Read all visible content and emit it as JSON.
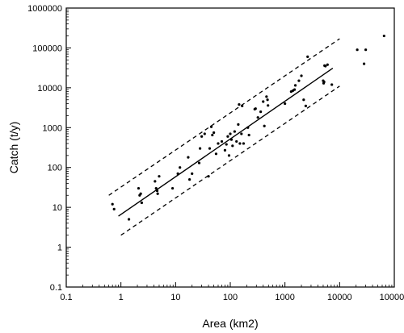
{
  "chart_data": {
    "type": "scatter",
    "title": "",
    "xlabel": "Area  (km2)",
    "ylabel": "Catch  (t/y)",
    "x_scale": "log",
    "y_scale": "log",
    "xlim": [
      0.1,
      100000
    ],
    "ylim": [
      0.1,
      1000000
    ],
    "x_ticks": [
      "0.1",
      "1",
      "10",
      "100",
      "1000",
      "10000",
      "100000"
    ],
    "y_ticks": [
      "0.1",
      "1",
      "10",
      "100",
      "1000",
      "10000",
      "100000",
      "1000000"
    ],
    "grid": false,
    "legend": "none",
    "points": [
      [
        0.7,
        12
      ],
      [
        0.75,
        9
      ],
      [
        1.4,
        5
      ],
      [
        2.1,
        30
      ],
      [
        2.2,
        20
      ],
      [
        2.3,
        22
      ],
      [
        2.4,
        13
      ],
      [
        4.2,
        45
      ],
      [
        4.4,
        30
      ],
      [
        4.6,
        26
      ],
      [
        4.7,
        22
      ],
      [
        5.0,
        60
      ],
      [
        8.8,
        30
      ],
      [
        11,
        70
      ],
      [
        12,
        100
      ],
      [
        17,
        180
      ],
      [
        18,
        50
      ],
      [
        20,
        70
      ],
      [
        27,
        130
      ],
      [
        28,
        300
      ],
      [
        30,
        600
      ],
      [
        34,
        700
      ],
      [
        40,
        60
      ],
      [
        42,
        300
      ],
      [
        45,
        1050
      ],
      [
        47,
        650
      ],
      [
        50,
        750
      ],
      [
        55,
        220
      ],
      [
        60,
        400
      ],
      [
        70,
        450
      ],
      [
        80,
        270
      ],
      [
        85,
        380
      ],
      [
        90,
        600
      ],
      [
        95,
        200
      ],
      [
        100,
        700
      ],
      [
        105,
        500
      ],
      [
        110,
        350
      ],
      [
        120,
        800
      ],
      [
        130,
        450
      ],
      [
        140,
        1200
      ],
      [
        145,
        3800
      ],
      [
        150,
        400
      ],
      [
        160,
        700
      ],
      [
        165,
        3500
      ],
      [
        175,
        400
      ],
      [
        210,
        1000
      ],
      [
        220,
        650
      ],
      [
        280,
        2900
      ],
      [
        290,
        3000
      ],
      [
        320,
        1800
      ],
      [
        360,
        2500
      ],
      [
        400,
        4500
      ],
      [
        420,
        1100
      ],
      [
        460,
        6000
      ],
      [
        480,
        5000
      ],
      [
        490,
        3600
      ],
      [
        1000,
        4000
      ],
      [
        1300,
        8000
      ],
      [
        1400,
        8500
      ],
      [
        1500,
        9000
      ],
      [
        1550,
        11500
      ],
      [
        1800,
        15000
      ],
      [
        2000,
        20000
      ],
      [
        2200,
        5000
      ],
      [
        2400,
        3500
      ],
      [
        2600,
        60000
      ],
      [
        5000,
        15000
      ],
      [
        5100,
        13000
      ],
      [
        5200,
        14000
      ],
      [
        5300,
        36000
      ],
      [
        5500,
        35000
      ],
      [
        6000,
        38000
      ],
      [
        7200,
        12000
      ],
      [
        21000,
        90000
      ],
      [
        28000,
        40000
      ],
      [
        30000,
        90000
      ],
      [
        65000,
        200000
      ]
    ],
    "regression": {
      "x": [
        0.9,
        7500
      ],
      "y": [
        6,
        31000
      ]
    },
    "bounds": [
      {
        "x": [
          0.6,
          10000
        ],
        "y": [
          20,
          170000
        ]
      },
      {
        "x": [
          1.0,
          10000
        ],
        "y": [
          2,
          11000
        ]
      }
    ]
  }
}
